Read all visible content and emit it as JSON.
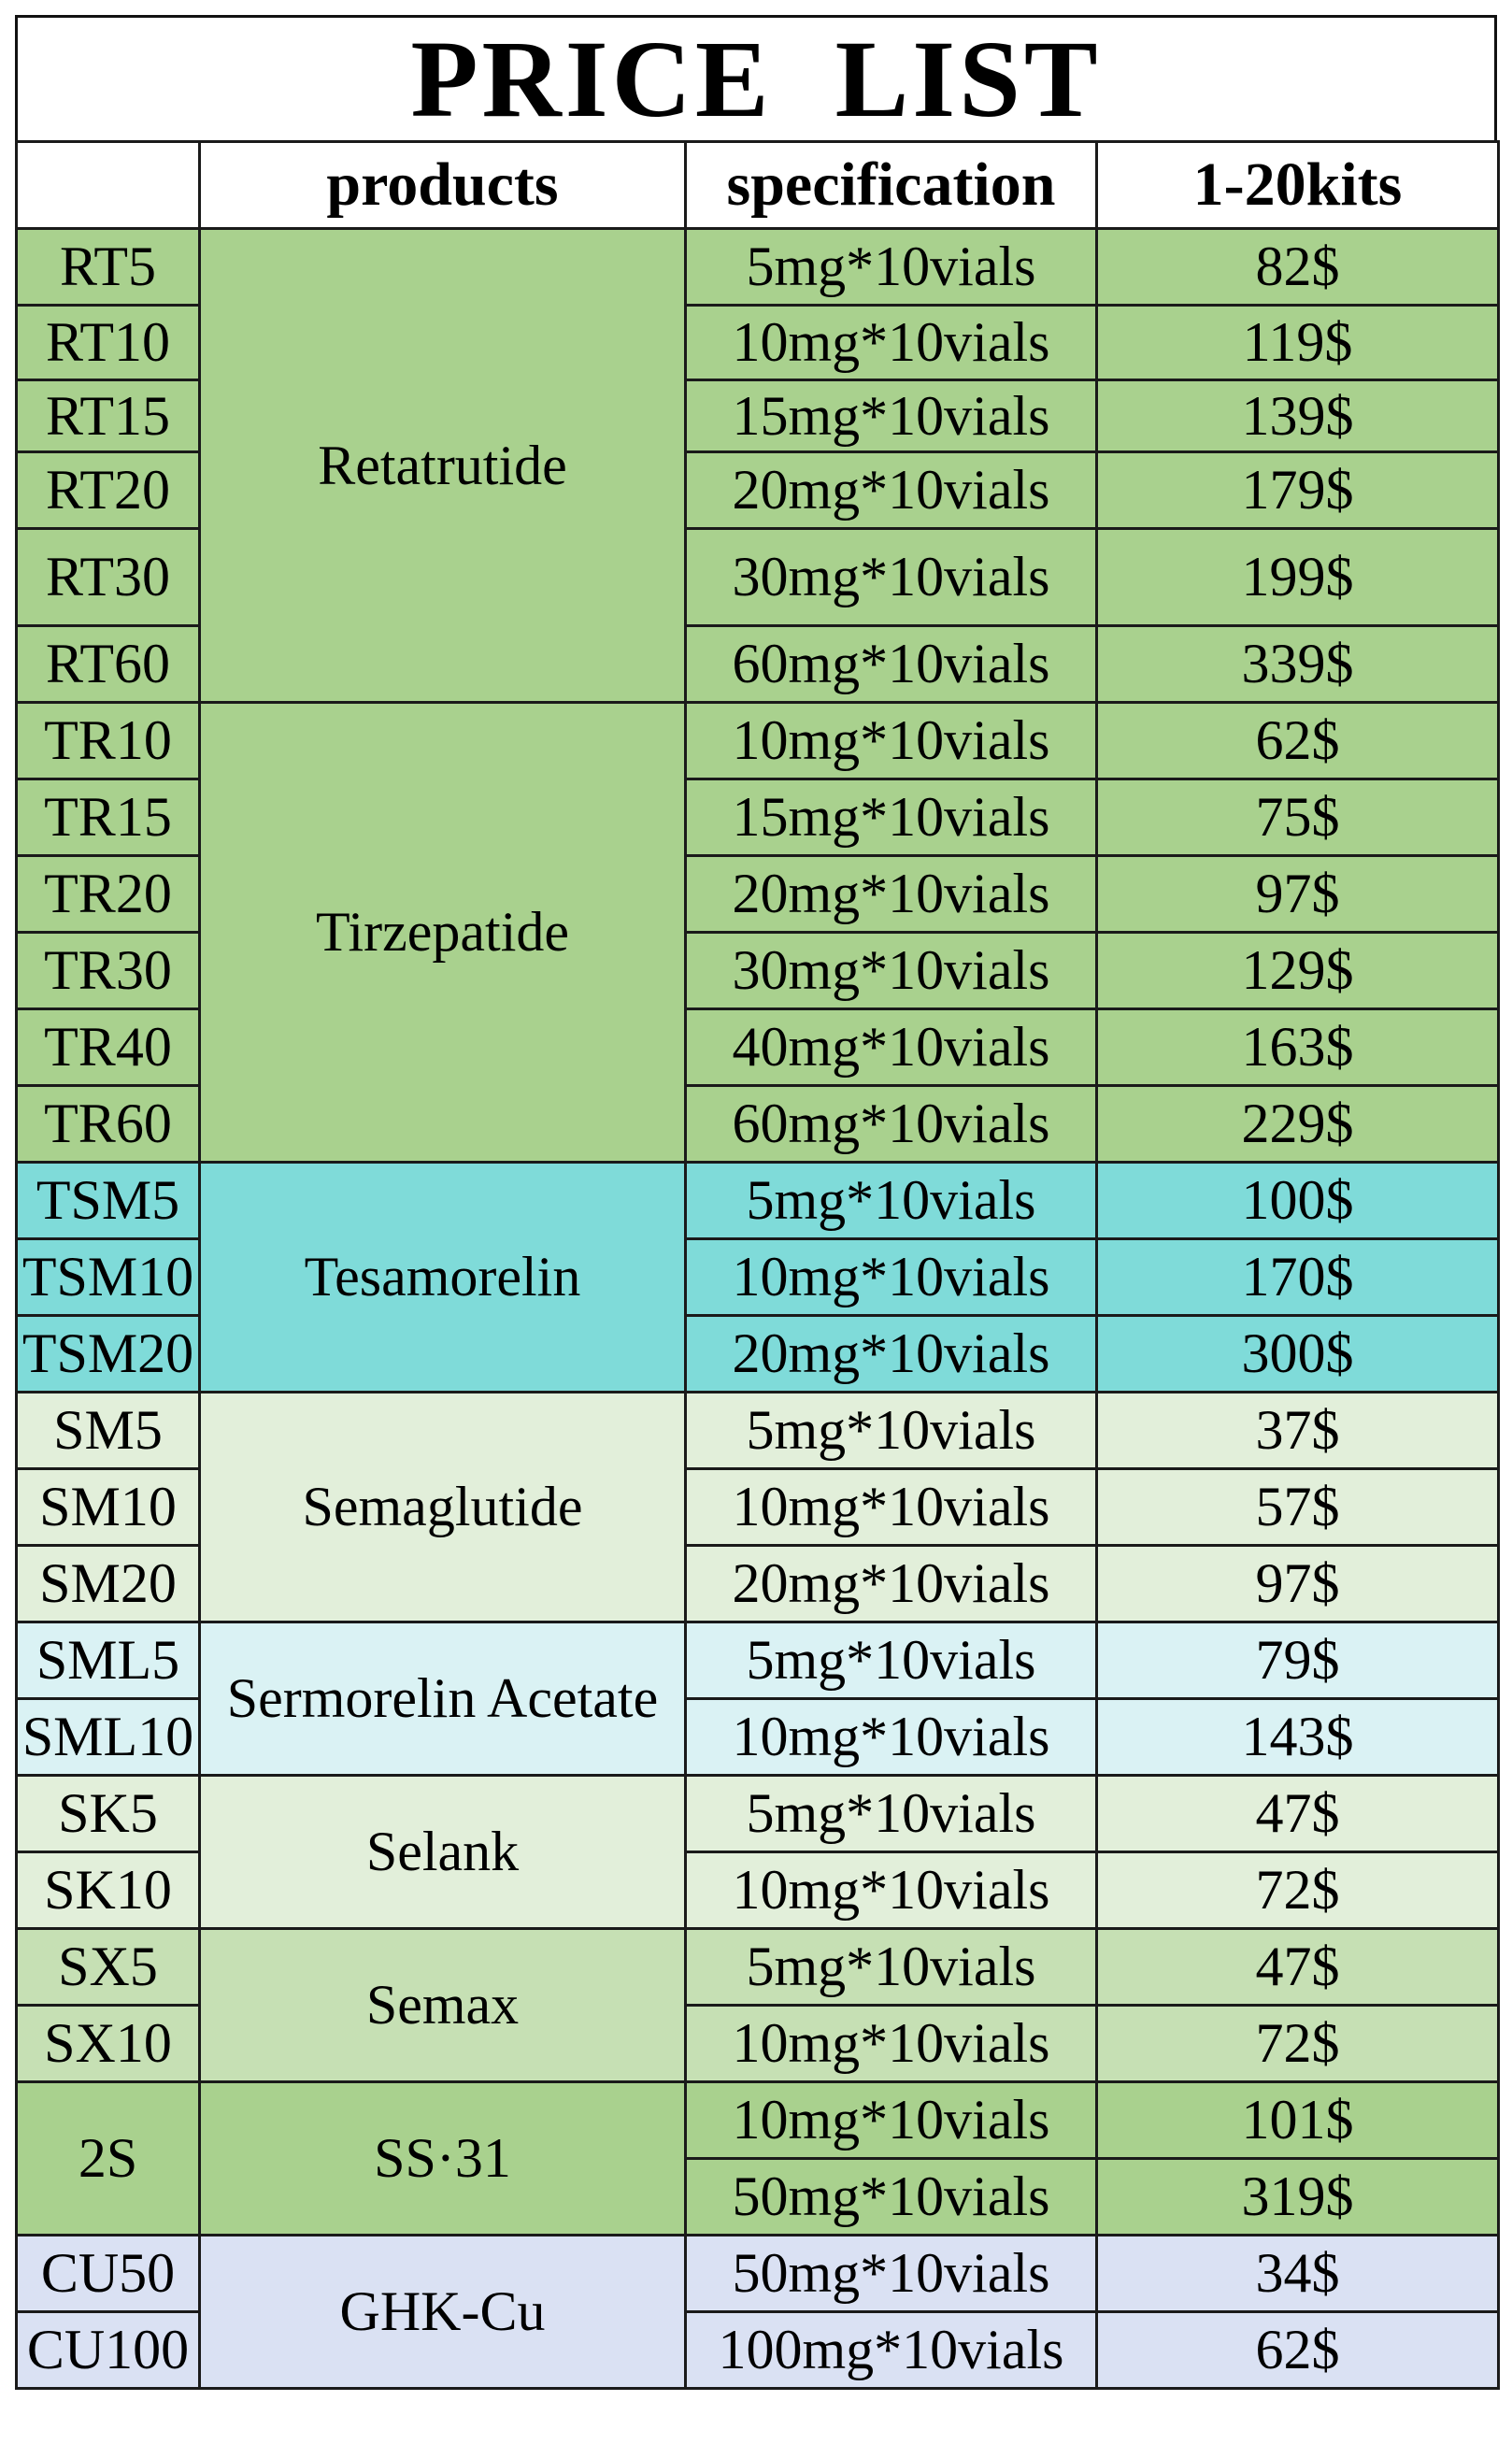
{
  "title": "PRICE  LIST",
  "headers": {
    "code": "",
    "products": "products",
    "specification": "specification",
    "price": "1-20kits"
  },
  "colors": {
    "green": "#a9d18e",
    "teal": "#7fdbd9",
    "light_green": "#e2efda",
    "light_cyan": "#daf2f4",
    "sage": "#c6e0b4",
    "lavender": "#dae1f3"
  },
  "groups": [
    {
      "product": "Retatrutide",
      "color": "#a9d18e",
      "rows": [
        {
          "code": "RT5",
          "spec": "5mg*10vials",
          "price": "82$"
        },
        {
          "code": "RT10",
          "spec": "10mg*10vials",
          "price": "119$"
        },
        {
          "code": "RT15",
          "spec": "15mg*10vials",
          "price": "139$"
        },
        {
          "code": "RT20",
          "spec": "20mg*10vials",
          "price": "179$"
        },
        {
          "code": "RT30",
          "spec": "30mg*10vials",
          "price": "199$"
        },
        {
          "code": "RT60",
          "spec": "60mg*10vials",
          "price": "339$"
        }
      ]
    },
    {
      "product": "Tirzepatide",
      "color": "#a9d18e",
      "rows": [
        {
          "code": "TR10",
          "spec": "10mg*10vials",
          "price": "62$"
        },
        {
          "code": "TR15",
          "spec": "15mg*10vials",
          "price": "75$"
        },
        {
          "code": "TR20",
          "spec": "20mg*10vials",
          "price": "97$"
        },
        {
          "code": "TR30",
          "spec": "30mg*10vials",
          "price": "129$"
        },
        {
          "code": "TR40",
          "spec": "40mg*10vials",
          "price": "163$"
        },
        {
          "code": "TR60",
          "spec": "60mg*10vials",
          "price": "229$"
        }
      ]
    },
    {
      "product": "Tesamorelin",
      "color": "#7fdbd9",
      "rows": [
        {
          "code": "TSM5",
          "spec": "5mg*10vials",
          "price": "100$"
        },
        {
          "code": "TSM10",
          "spec": "10mg*10vials",
          "price": "170$"
        },
        {
          "code": "TSM20",
          "spec": "20mg*10vials",
          "price": "300$"
        }
      ]
    },
    {
      "product": "Semaglutide",
      "color": "#e2efda",
      "rows": [
        {
          "code": "SM5",
          "spec": "5mg*10vials",
          "price": "37$"
        },
        {
          "code": "SM10",
          "spec": "10mg*10vials",
          "price": "57$"
        },
        {
          "code": "SM20",
          "spec": "20mg*10vials",
          "price": "97$"
        }
      ]
    },
    {
      "product": "Sermorelin Acetate",
      "color": "#daf2f4",
      "rows": [
        {
          "code": "SML5",
          "spec": "5mg*10vials",
          "price": "79$"
        },
        {
          "code": "SML10",
          "spec": "10mg*10vials",
          "price": "143$"
        }
      ]
    },
    {
      "product": "Selank",
      "color": "#e2efda",
      "rows": [
        {
          "code": "SK5",
          "spec": "5mg*10vials",
          "price": "47$"
        },
        {
          "code": "SK10",
          "spec": "10mg*10vials",
          "price": "72$"
        }
      ]
    },
    {
      "product": "Semax",
      "color": "#c6e0b4",
      "rows": [
        {
          "code": "SX5",
          "spec": "5mg*10vials",
          "price": "47$"
        },
        {
          "code": "SX10",
          "spec": "10mg*10vials",
          "price": "72$"
        }
      ]
    },
    {
      "product": "SS·31",
      "color": "#a9d18e",
      "merge_code": true,
      "rows": [
        {
          "code": "2S",
          "spec": "10mg*10vials",
          "price": "101$"
        },
        {
          "spec": "50mg*10vials",
          "price": "319$"
        }
      ]
    },
    {
      "product": "GHK-Cu",
      "color": "#dae1f3",
      "rows": [
        {
          "code": "CU50",
          "spec": "50mg*10vials",
          "price": "34$"
        },
        {
          "code": "CU100",
          "spec": "100mg*10vials",
          "price": "62$"
        }
      ]
    }
  ]
}
